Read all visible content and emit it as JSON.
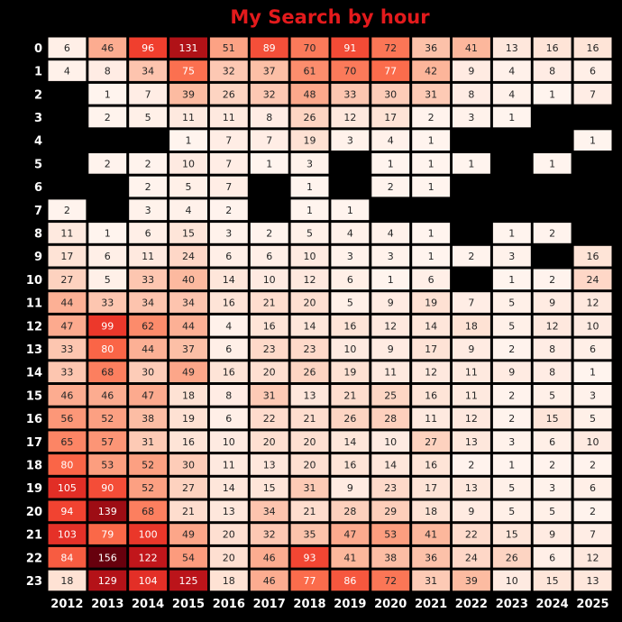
{
  "chart_data": {
    "type": "heatmap",
    "title": "My Search by hour",
    "title_color": "#e31a1c",
    "background": "#000000",
    "colormap": "Reds",
    "x": [
      "2012",
      "2013",
      "2014",
      "2015",
      "2016",
      "2017",
      "2018",
      "2019",
      "2020",
      "2021",
      "2022",
      "2023",
      "2024",
      "2025"
    ],
    "y": [
      "0",
      "1",
      "2",
      "3",
      "4",
      "5",
      "6",
      "7",
      "8",
      "9",
      "10",
      "11",
      "12",
      "13",
      "14",
      "15",
      "16",
      "17",
      "18",
      "19",
      "20",
      "21",
      "22",
      "23"
    ],
    "value_range": [
      0,
      156
    ],
    "values": [
      [
        6,
        46,
        96,
        131,
        51,
        89,
        70,
        91,
        72,
        36,
        41,
        13,
        16,
        16
      ],
      [
        4,
        8,
        34,
        75,
        32,
        37,
        61,
        70,
        77,
        42,
        9,
        4,
        8,
        6
      ],
      [
        null,
        1,
        7,
        39,
        26,
        32,
        48,
        33,
        30,
        31,
        8,
        4,
        1,
        7
      ],
      [
        null,
        2,
        5,
        11,
        11,
        8,
        26,
        12,
        17,
        2,
        3,
        1,
        null,
        null
      ],
      [
        null,
        null,
        null,
        1,
        7,
        7,
        19,
        3,
        4,
        1,
        null,
        null,
        null,
        1
      ],
      [
        null,
        2,
        2,
        10,
        7,
        1,
        3,
        null,
        1,
        1,
        1,
        null,
        1,
        null
      ],
      [
        null,
        null,
        2,
        5,
        7,
        null,
        1,
        null,
        2,
        1,
        null,
        null,
        null,
        null
      ],
      [
        2,
        null,
        3,
        4,
        2,
        null,
        1,
        1,
        null,
        null,
        null,
        null,
        null,
        null
      ],
      [
        11,
        1,
        6,
        15,
        3,
        2,
        5,
        4,
        4,
        1,
        null,
        1,
        2,
        null
      ],
      [
        17,
        6,
        11,
        24,
        6,
        6,
        10,
        3,
        3,
        1,
        2,
        3,
        null,
        16
      ],
      [
        27,
        5,
        33,
        40,
        14,
        10,
        12,
        6,
        1,
        6,
        null,
        1,
        2,
        24
      ],
      [
        44,
        33,
        34,
        34,
        16,
        21,
        20,
        5,
        9,
        19,
        7,
        5,
        9,
        12
      ],
      [
        47,
        99,
        62,
        44,
        4,
        16,
        14,
        16,
        12,
        14,
        18,
        5,
        12,
        10
      ],
      [
        33,
        80,
        44,
        37,
        6,
        23,
        23,
        10,
        9,
        17,
        9,
        2,
        8,
        6
      ],
      [
        33,
        68,
        30,
        49,
        16,
        20,
        26,
        19,
        11,
        12,
        11,
        9,
        8,
        1
      ],
      [
        46,
        46,
        47,
        18,
        8,
        31,
        13,
        21,
        25,
        16,
        11,
        2,
        5,
        3
      ],
      [
        56,
        52,
        38,
        19,
        6,
        22,
        21,
        26,
        28,
        11,
        12,
        2,
        15,
        5
      ],
      [
        65,
        57,
        31,
        16,
        10,
        20,
        20,
        14,
        10,
        27,
        13,
        3,
        6,
        10
      ],
      [
        80,
        53,
        52,
        30,
        11,
        13,
        20,
        16,
        14,
        16,
        2,
        1,
        2,
        2
      ],
      [
        105,
        90,
        52,
        27,
        14,
        15,
        31,
        9,
        23,
        17,
        13,
        5,
        3,
        6
      ],
      [
        94,
        139,
        68,
        21,
        13,
        34,
        21,
        28,
        29,
        18,
        9,
        5,
        5,
        2
      ],
      [
        103,
        79,
        100,
        49,
        20,
        32,
        35,
        47,
        53,
        41,
        22,
        15,
        9,
        7
      ],
      [
        84,
        156,
        122,
        54,
        20,
        46,
        93,
        41,
        38,
        36,
        24,
        26,
        6,
        12
      ],
      [
        18,
        129,
        104,
        125,
        18,
        46,
        77,
        86,
        72,
        31,
        39,
        10,
        15,
        13
      ]
    ]
  }
}
